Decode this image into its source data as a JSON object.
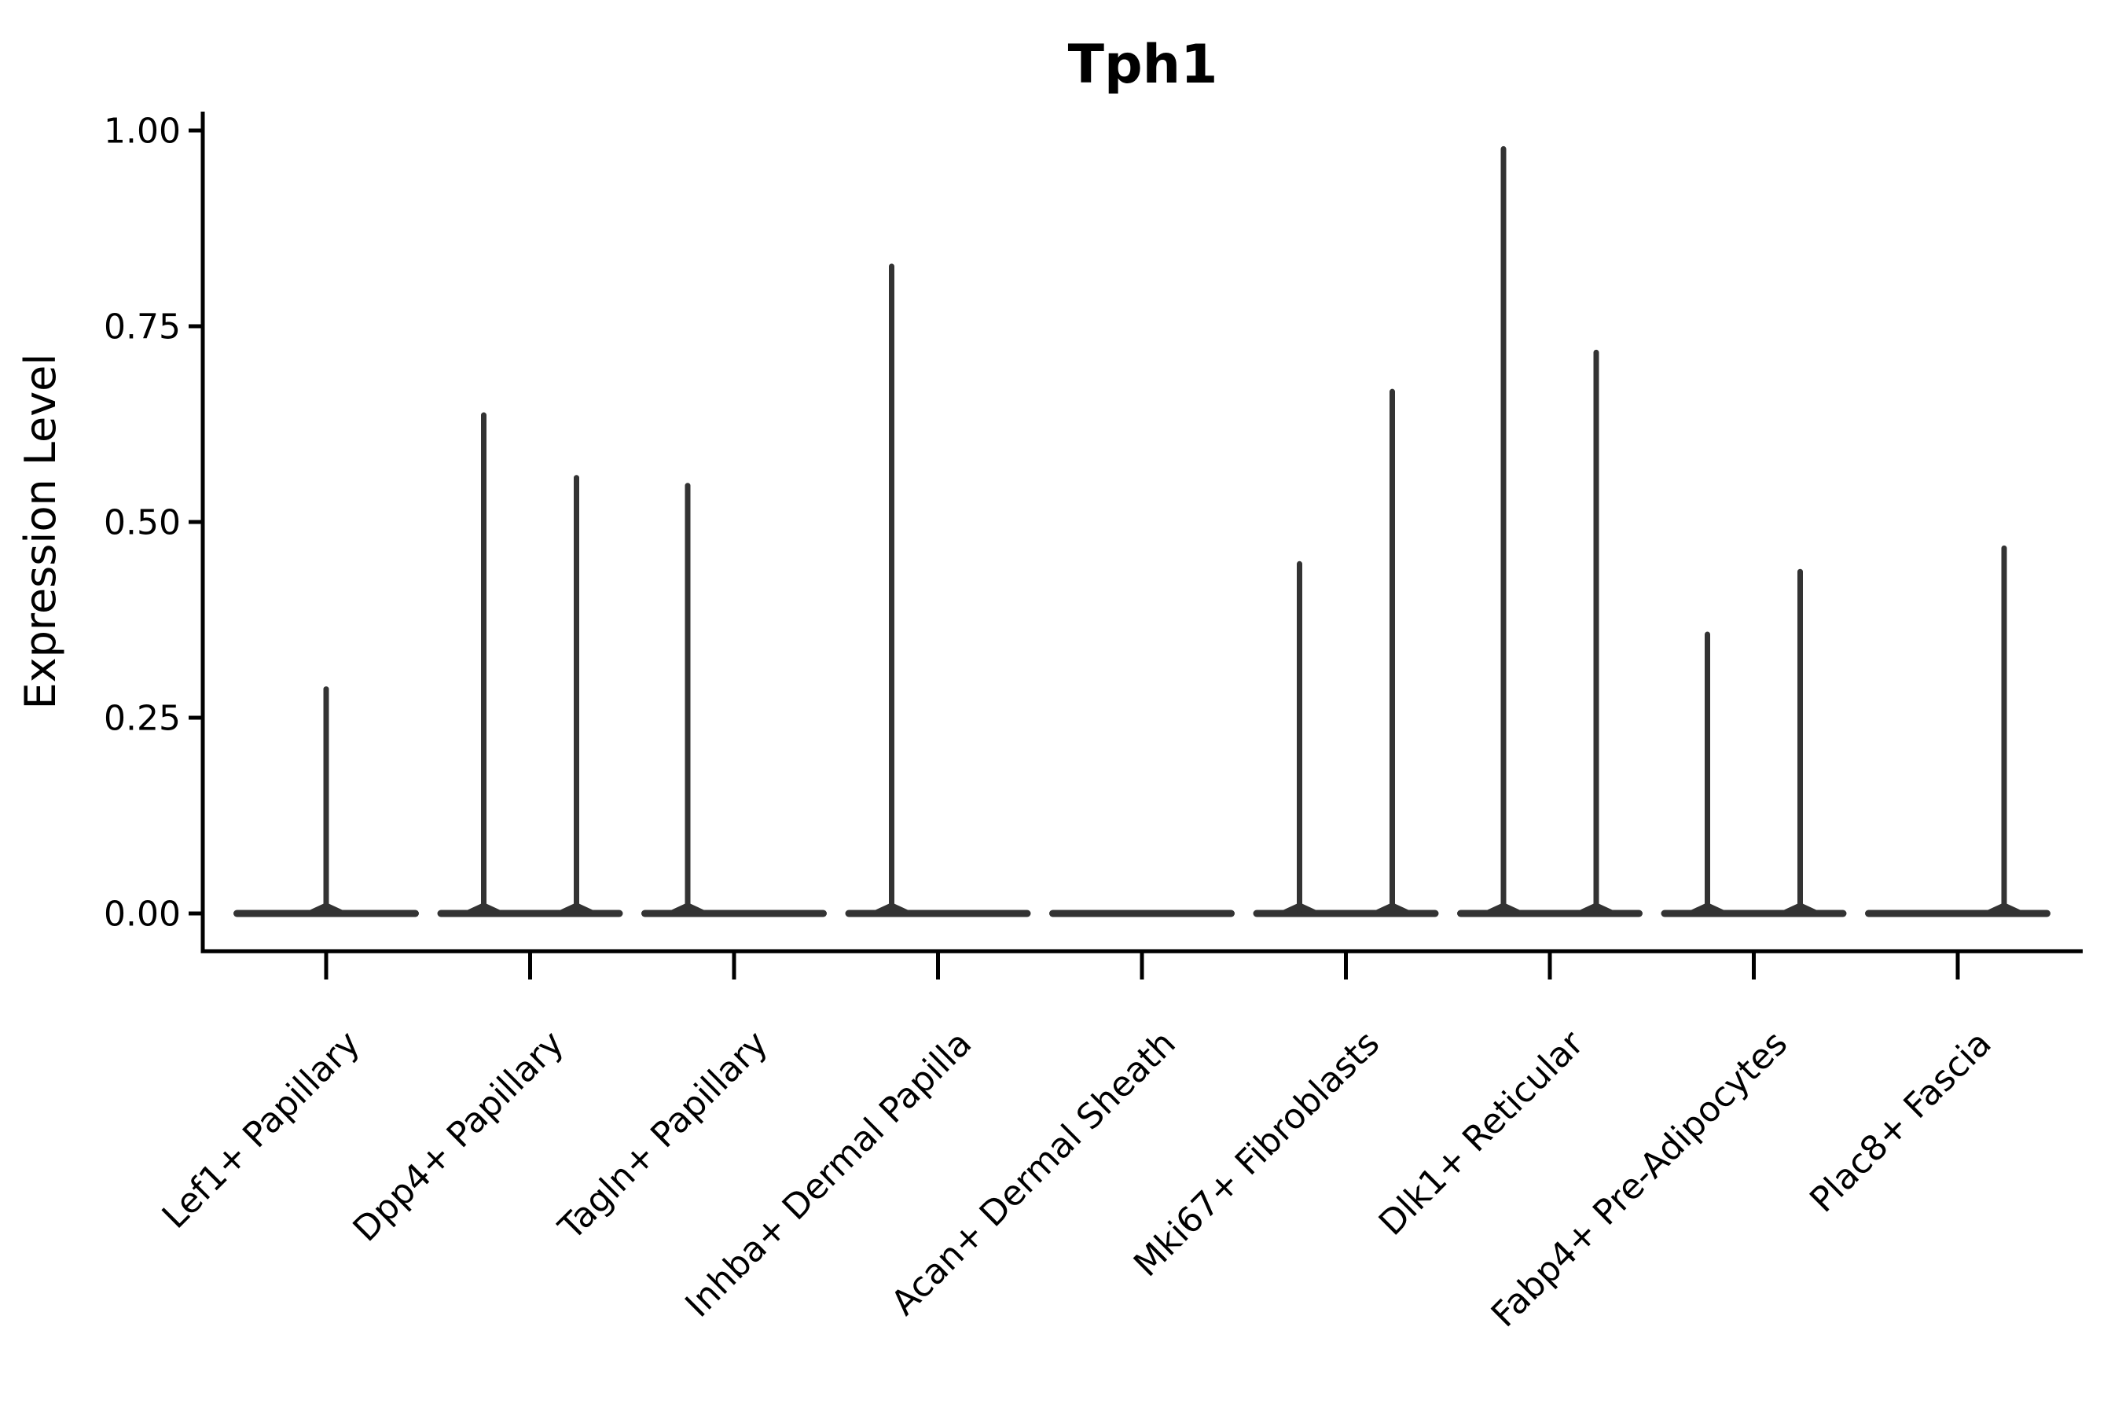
{
  "page": {
    "background": "#ffffff"
  },
  "title": {
    "text": "Tph1"
  },
  "y_axis": {
    "label": "Expression Level",
    "tick_labels": [
      "1.00",
      "0.75",
      "0.50",
      "0.25",
      "0.00"
    ]
  },
  "x_axis": {
    "tick_labels": [
      "Lef1+ Papillary",
      "Dpp4+ Papillary",
      "Tagln+ Papillary",
      "Inhba+ Dermal Papilla",
      "Acan+ Dermal Sheath",
      "Mki67+ Fibroblasts",
      "Dlk1+ Reticular",
      "Fabp4+ Pre-Adipocytes",
      "Plac8+ Fascia"
    ]
  },
  "colors": {
    "violin": "#333333",
    "axis": "#000000",
    "text": "#000000",
    "background": "#ffffff"
  },
  "chart_data": {
    "type": "violin",
    "title": "Tph1",
    "xlabel": "",
    "ylabel": "Expression Level",
    "ylim": [
      0,
      1.0
    ],
    "yticks": [
      0.0,
      0.25,
      0.5,
      0.75,
      1.0
    ],
    "grid": false,
    "legend": "none",
    "categories": [
      "Lef1+ Papillary",
      "Dpp4+ Papillary",
      "Tagln+ Papillary",
      "Inhba+ Dermal Papilla",
      "Acan+ Dermal Sheath",
      "Mki67+ Fibroblasts",
      "Dlk1+ Reticular",
      "Fabp4+ Pre-Adipocytes",
      "Plac8+ Fascia"
    ],
    "note": "Seurat-style violins: bulk of cells at 0 expression forming a flat lens at y=0, with thin density spikes rising to the max expression value; some categories contain two side-by-side sub-violins (left/right slots), Acan+ Dermal Sheath has no expressing cells",
    "violins": [
      {
        "category": "Lef1+ Papillary",
        "baseline_at_zero": true,
        "spikes": [
          {
            "slot": "center",
            "max": 0.29
          }
        ]
      },
      {
        "category": "Dpp4+ Papillary",
        "baseline_at_zero": true,
        "spikes": [
          {
            "slot": "left",
            "max": 0.64
          },
          {
            "slot": "right",
            "max": 0.56
          }
        ]
      },
      {
        "category": "Tagln+ Papillary",
        "baseline_at_zero": true,
        "spikes": [
          {
            "slot": "left",
            "max": 0.55
          }
        ]
      },
      {
        "category": "Inhba+ Dermal Papilla",
        "baseline_at_zero": true,
        "spikes": [
          {
            "slot": "left",
            "max": 0.83
          }
        ]
      },
      {
        "category": "Acan+ Dermal Sheath",
        "baseline_at_zero": true,
        "spikes": []
      },
      {
        "category": "Mki67+ Fibroblasts",
        "baseline_at_zero": true,
        "spikes": [
          {
            "slot": "left",
            "max": 0.45
          },
          {
            "slot": "right",
            "max": 0.67
          }
        ]
      },
      {
        "category": "Dlk1+ Reticular",
        "baseline_at_zero": true,
        "spikes": [
          {
            "slot": "left",
            "max": 0.98
          },
          {
            "slot": "right",
            "max": 0.72
          }
        ]
      },
      {
        "category": "Fabp4+ Pre-Adipocytes",
        "baseline_at_zero": true,
        "spikes": [
          {
            "slot": "left",
            "max": 0.36
          },
          {
            "slot": "right",
            "max": 0.44
          }
        ]
      },
      {
        "category": "Plac8+ Fascia",
        "baseline_at_zero": true,
        "spikes": [
          {
            "slot": "right",
            "max": 0.47
          }
        ]
      }
    ]
  }
}
